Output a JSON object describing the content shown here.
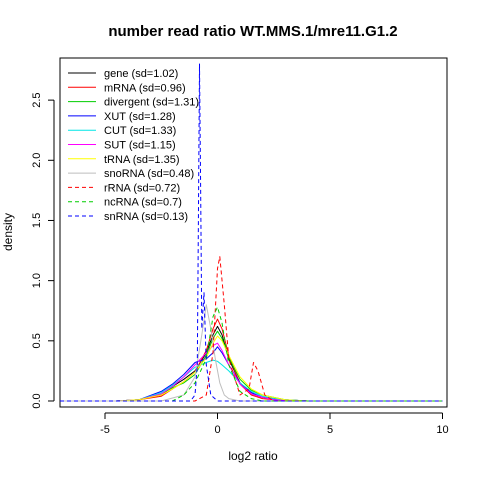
{
  "chart_data": {
    "type": "line",
    "title": "number read ratio WT.MMS.1/mre11.G1.2",
    "xlabel": "log2 ratio",
    "ylabel": "density",
    "xlim": [
      -7,
      10.2
    ],
    "ylim": [
      -0.05,
      2.85
    ],
    "x_ticks": [
      -5,
      0,
      5,
      10
    ],
    "x_tick_labels": [
      "-5",
      "0",
      "5",
      "10"
    ],
    "y_ticks": [
      0.0,
      0.5,
      1.0,
      1.5,
      2.0,
      2.5
    ],
    "y_tick_labels": [
      "0.0",
      "0.5",
      "1.0",
      "1.5",
      "2.0",
      "2.5"
    ],
    "grid": false,
    "legend_position": "top-left",
    "series": [
      {
        "name": "gene (sd=1.02)",
        "color": "#000000",
        "dash": "solid",
        "x": [
          -7,
          -4.5,
          -3.5,
          -2.5,
          -2.0,
          -1.5,
          -1.0,
          -0.5,
          -0.2,
          0.0,
          0.2,
          0.5,
          1.0,
          1.5,
          2.0,
          2.5,
          3.0,
          4.0,
          10
        ],
        "y": [
          0,
          0,
          0.01,
          0.05,
          0.12,
          0.18,
          0.25,
          0.4,
          0.55,
          0.62,
          0.55,
          0.35,
          0.15,
          0.06,
          0.03,
          0.02,
          0.01,
          0,
          0
        ]
      },
      {
        "name": "mRNA (sd=0.96)",
        "color": "#ff0000",
        "dash": "solid",
        "x": [
          -7,
          -4.5,
          -3.5,
          -2.5,
          -2.0,
          -1.5,
          -1.0,
          -0.5,
          -0.2,
          0.0,
          0.2,
          0.5,
          1.0,
          1.5,
          2.0,
          2.5,
          3.0,
          4.0,
          10
        ],
        "y": [
          0,
          0,
          0.01,
          0.04,
          0.1,
          0.16,
          0.24,
          0.42,
          0.6,
          0.68,
          0.6,
          0.38,
          0.14,
          0.05,
          0.02,
          0.01,
          0.005,
          0,
          0
        ]
      },
      {
        "name": "divergent (sd=1.31)",
        "color": "#00cd00",
        "dash": "solid",
        "x": [
          -7,
          -4.5,
          -3.5,
          -2.5,
          -2.0,
          -1.5,
          -1.0,
          -0.5,
          -0.2,
          0.0,
          0.2,
          0.5,
          1.0,
          1.5,
          2.0,
          2.5,
          3.0,
          4.0,
          10
        ],
        "y": [
          0,
          0,
          0.01,
          0.06,
          0.11,
          0.15,
          0.22,
          0.38,
          0.52,
          0.58,
          0.52,
          0.36,
          0.18,
          0.09,
          0.05,
          0.03,
          0.01,
          0,
          0
        ]
      },
      {
        "name": "XUT (sd=1.28)",
        "color": "#0000ff",
        "dash": "solid",
        "x": [
          -7,
          -4.5,
          -3.5,
          -2.5,
          -2.0,
          -1.5,
          -1.0,
          -0.5,
          -0.2,
          0.0,
          0.2,
          0.5,
          1.0,
          1.5,
          2.0,
          2.5,
          3.0,
          4.0,
          10
        ],
        "y": [
          0,
          0,
          0.01,
          0.08,
          0.14,
          0.22,
          0.32,
          0.35,
          0.4,
          0.45,
          0.4,
          0.3,
          0.15,
          0.07,
          0.03,
          0.02,
          0.01,
          0,
          0
        ]
      },
      {
        "name": "CUT (sd=1.33)",
        "color": "#00e5e5",
        "dash": "solid",
        "x": [
          -7,
          -4.5,
          -3.5,
          -2.5,
          -2.0,
          -1.5,
          -1.0,
          -0.5,
          -0.2,
          0.0,
          0.2,
          0.5,
          1.0,
          1.5,
          2.0,
          2.5,
          3.0,
          4.0,
          10
        ],
        "y": [
          0,
          0,
          0.01,
          0.07,
          0.13,
          0.2,
          0.28,
          0.32,
          0.34,
          0.33,
          0.3,
          0.25,
          0.15,
          0.08,
          0.04,
          0.02,
          0.01,
          0,
          0
        ]
      },
      {
        "name": "SUT (sd=1.15)",
        "color": "#ff00ff",
        "dash": "solid",
        "x": [
          -7,
          -4.5,
          -3.5,
          -2.5,
          -2.0,
          -1.5,
          -1.0,
          -0.5,
          -0.2,
          0.0,
          0.2,
          0.5,
          1.0,
          1.5,
          2.0,
          2.5,
          3.0,
          4.0,
          10
        ],
        "y": [
          0,
          0,
          0.01,
          0.06,
          0.12,
          0.2,
          0.3,
          0.4,
          0.46,
          0.48,
          0.42,
          0.3,
          0.14,
          0.06,
          0.03,
          0.01,
          0.005,
          0,
          0
        ]
      },
      {
        "name": "tRNA (sd=1.35)",
        "color": "#ffff00",
        "dash": "solid",
        "x": [
          -7,
          -4.5,
          -3.5,
          -2.5,
          -2.0,
          -1.5,
          -1.0,
          -0.5,
          -0.2,
          0.0,
          0.2,
          0.5,
          1.0,
          1.5,
          2.0,
          2.5,
          3.0,
          4.0,
          10
        ],
        "y": [
          0,
          0,
          0.01,
          0.05,
          0.1,
          0.16,
          0.24,
          0.36,
          0.48,
          0.54,
          0.5,
          0.38,
          0.2,
          0.1,
          0.05,
          0.03,
          0.01,
          0,
          0
        ]
      },
      {
        "name": "snoRNA (sd=0.48)",
        "color": "#bebebe",
        "dash": "solid",
        "x": [
          -7,
          -2.5,
          -1.5,
          -1.0,
          -0.7,
          -0.5,
          -0.3,
          -0.1,
          0.1,
          0.3,
          0.5,
          1.0,
          1.5,
          10
        ],
        "y": [
          0,
          0,
          0.05,
          0.2,
          0.55,
          0.8,
          0.6,
          0.35,
          0.15,
          0.05,
          0.02,
          0,
          0,
          0
        ]
      },
      {
        "name": "rRNA (sd=0.72)",
        "color": "#ff0000",
        "dash": "dashed",
        "x": [
          -7,
          -1.0,
          -0.5,
          -0.2,
          0.0,
          0.1,
          0.3,
          0.5,
          1.0,
          1.4,
          1.6,
          1.8,
          2.1,
          2.5,
          10
        ],
        "y": [
          0,
          0,
          0.05,
          0.4,
          1.1,
          1.2,
          0.8,
          0.35,
          0.05,
          0.1,
          0.32,
          0.25,
          0.05,
          0,
          0
        ]
      },
      {
        "name": "ncRNA (sd=0.7)",
        "color": "#00cd00",
        "dash": "dashed",
        "x": [
          -7,
          -2.0,
          -1.5,
          -1.0,
          -0.5,
          -0.2,
          0.0,
          0.2,
          0.5,
          1.0,
          1.5,
          2.0,
          10
        ],
        "y": [
          0,
          0,
          0.05,
          0.15,
          0.35,
          0.7,
          0.78,
          0.65,
          0.3,
          0.08,
          0.02,
          0,
          0
        ]
      },
      {
        "name": "snRNA (sd=0.13)",
        "color": "#0000ff",
        "dash": "dashed",
        "x": [
          -7,
          -1.2,
          -1.0,
          -0.9,
          -0.85,
          -0.8,
          -0.75,
          -0.7,
          -0.6,
          -0.5,
          -0.3,
          0.0,
          10
        ],
        "y": [
          0,
          0,
          0.05,
          0.3,
          1.5,
          2.8,
          1.8,
          0.6,
          0.9,
          0.3,
          0.05,
          0,
          0
        ]
      }
    ]
  }
}
